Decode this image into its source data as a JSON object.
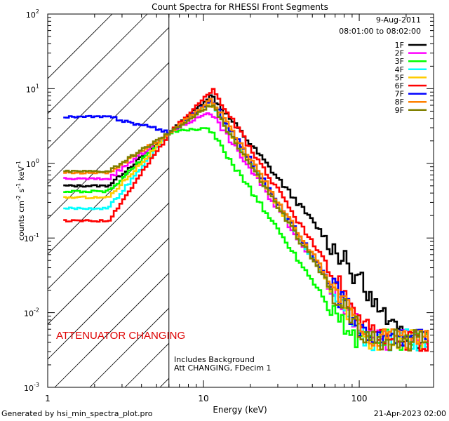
{
  "chart_data": {
    "type": "line",
    "title": "Count Spectra for RHESSI Front Segments",
    "xlabel": "Energy (keV)",
    "ylabel": "counts cm^-2 s^-1 keV^-1",
    "ylabel_parts": {
      "base": "counts cm",
      "e1": "-2",
      "s": " s",
      "e2": "-1",
      "k": " keV",
      "e3": "-1"
    },
    "xscale": "log",
    "yscale": "log",
    "xlim": [
      1,
      300
    ],
    "ylim": [
      0.001,
      100
    ],
    "x_ticks": [
      {
        "value": 1,
        "label": "1"
      },
      {
        "value": 10,
        "label": "10"
      },
      {
        "value": 100,
        "label": "100"
      }
    ],
    "y_ticks": [
      {
        "value": 0.001,
        "base": "10",
        "exp": "-3"
      },
      {
        "value": 0.01,
        "base": "10",
        "exp": "-2"
      },
      {
        "value": 0.1,
        "base": "10",
        "exp": "-1"
      },
      {
        "value": 1,
        "base": "10",
        "exp": "0"
      },
      {
        "value": 10,
        "base": "10",
        "exp": "1"
      },
      {
        "value": 100,
        "base": "10",
        "exp": "2"
      }
    ],
    "date": "9-Aug-2011",
    "time_range": "08:01:00 to 08:02:00",
    "attenuator_text": "ATTENUATOR CHANGING",
    "note_line1": "Includes Background",
    "note_line2": "Att CHANGING, FDecim 1",
    "hatch_upper_x": 6,
    "series": [
      {
        "name": "1F",
        "color": "#000000",
        "peak_x": 11,
        "peak_y": 8.2,
        "start_y": 0.5,
        "slope": -2.6
      },
      {
        "name": "2F",
        "color": "#ff00ff",
        "peak_x": 10.8,
        "peak_y": 5.0,
        "start_y": 0.62,
        "slope": -3.0
      },
      {
        "name": "3F",
        "color": "#00ff00",
        "peak_x": 10.5,
        "peak_y": 3.0,
        "start_y": 0.42,
        "slope": -3.05
      },
      {
        "name": "4F",
        "color": "#00ffff",
        "peak_x": 11,
        "peak_y": 6.6,
        "start_y": 0.25,
        "slope": -3.2
      },
      {
        "name": "5F",
        "color": "#ffcc00",
        "peak_x": 11,
        "peak_y": 6.5,
        "start_y": 0.35,
        "slope": -3.2
      },
      {
        "name": "6F",
        "color": "#ff0000",
        "peak_x": 11.2,
        "peak_y": 9.6,
        "start_y": 0.17,
        "slope": -3.2
      },
      {
        "name": "7F",
        "color": "#0000ff",
        "peak_x": 11,
        "peak_y": 7.0,
        "start_y": 4.2,
        "slope": -3.2
      },
      {
        "name": "8F",
        "color": "#ff8000",
        "peak_x": 11,
        "peak_y": 7.3,
        "start_y": 0.75,
        "slope": -3.2
      },
      {
        "name": "9F",
        "color": "#808000",
        "peak_x": 11,
        "peak_y": 6.1,
        "start_y": 0.78,
        "slope": -3.2
      }
    ]
  },
  "footer": {
    "generated_by": "Generated by hsi_min_spectra_plot.pro",
    "timestamp": "21-Apr-2023 02:00"
  }
}
